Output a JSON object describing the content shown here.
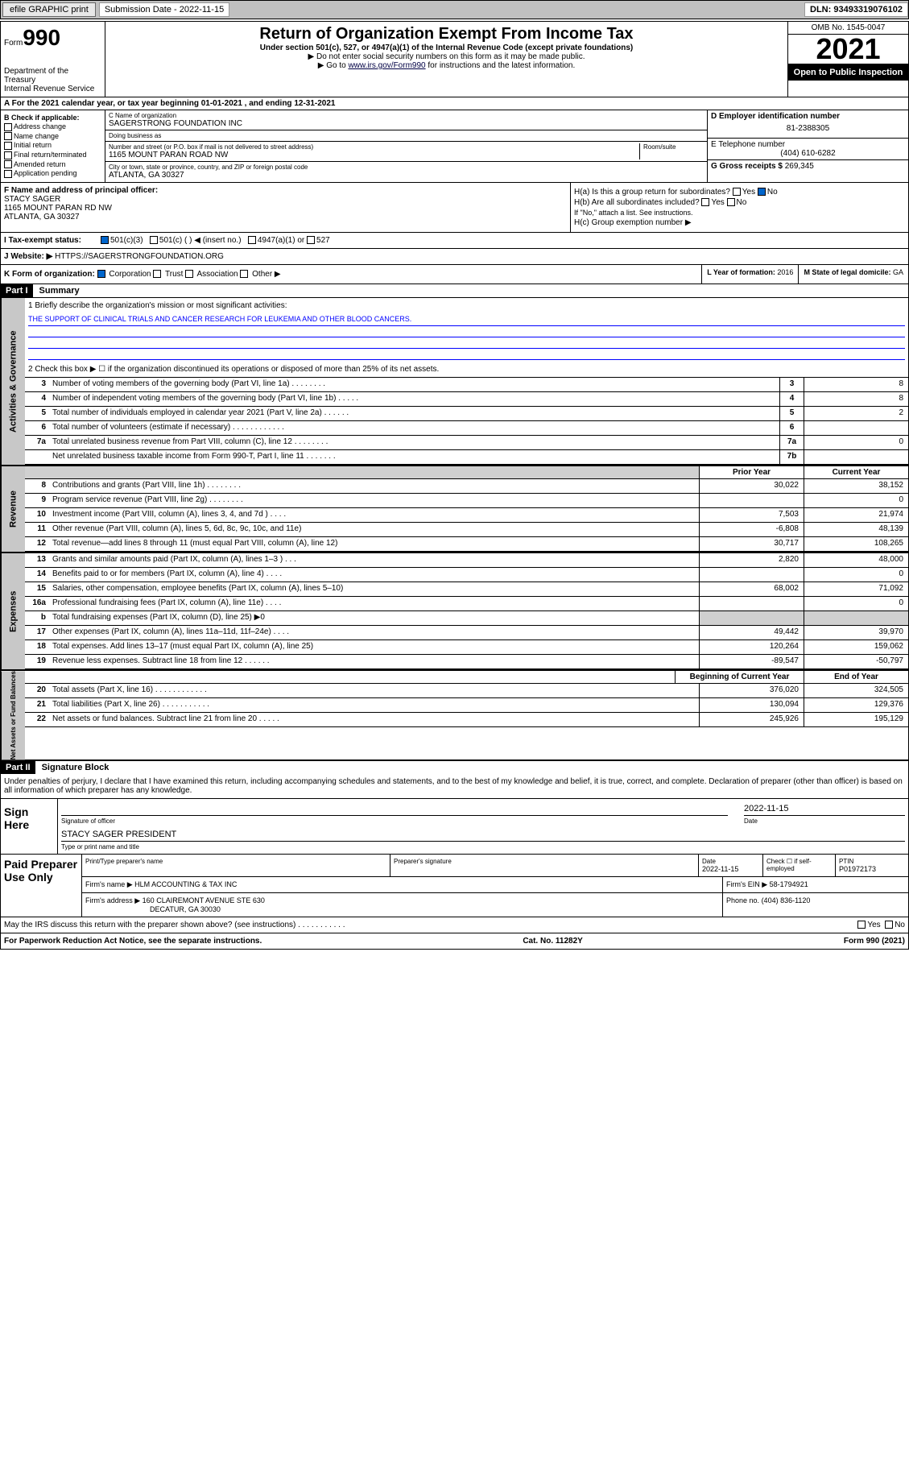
{
  "topbar": {
    "efile": "efile GRAPHIC print",
    "sub_label": "Submission Date - 2022-11-15",
    "dln": "DLN: 93493319076102"
  },
  "header": {
    "form_prefix": "Form",
    "form_number": "990",
    "dept": "Department of the Treasury",
    "irs": "Internal Revenue Service",
    "title": "Return of Organization Exempt From Income Tax",
    "sub": "Under section 501(c), 527, or 4947(a)(1) of the Internal Revenue Code (except private foundations)",
    "note1": "▶ Do not enter social security numbers on this form as it may be made public.",
    "note2_pre": "▶ Go to ",
    "note2_link": "www.irs.gov/Form990",
    "note2_post": " for instructions and the latest information.",
    "omb": "OMB No. 1545-0047",
    "year": "2021",
    "open": "Open to Public Inspection"
  },
  "rowA": {
    "text": "A For the 2021 calendar year, or tax year beginning 01-01-2021   , and ending 12-31-2021"
  },
  "colB": {
    "header": "B Check if applicable:",
    "items": [
      "Address change",
      "Name change",
      "Initial return",
      "Final return/terminated",
      "Amended return",
      "Application pending"
    ]
  },
  "colC": {
    "name_label": "C Name of organization",
    "name": "SAGERSTRONG FOUNDATION INC",
    "dba_label": "Doing business as",
    "dba": "",
    "addr_label": "Number and street (or P.O. box if mail is not delivered to street address)",
    "room_label": "Room/suite",
    "addr": "1165 MOUNT PARAN ROAD NW",
    "city_label": "City or town, state or province, country, and ZIP or foreign postal code",
    "city": "ATLANTA, GA  30327"
  },
  "colD": {
    "d_label": "D Employer identification number",
    "d_val": "81-2388305",
    "e_label": "E Telephone number",
    "e_val": "(404) 610-6282",
    "g_label": "G Gross receipts $",
    "g_val": "269,345"
  },
  "secF": {
    "label": "F Name and address of principal officer:",
    "name": "STACY SAGER",
    "addr": "1165 MOUNT PARAN RD NW",
    "city": "ATLANTA, GA  30327"
  },
  "secH": {
    "ha": "H(a)  Is this a group return for subordinates?",
    "ha_no": "No",
    "hb": "H(b)  Are all subordinates included?",
    "hb_note": "If \"No,\" attach a list. See instructions.",
    "hc": "H(c)  Group exemption number ▶"
  },
  "status": {
    "i": "I   Tax-exempt status:",
    "c3": "501(c)(3)",
    "c": "501(c) (  ) ◀ (insert no.)",
    "a1": "4947(a)(1) or",
    "s527": "527"
  },
  "website": {
    "label": "J   Website: ▶",
    "val": "HTTPS://SAGERSTRONGFOUNDATION.ORG"
  },
  "rowK": {
    "label": "K Form of organization:",
    "corp": "Corporation",
    "trust": "Trust",
    "assoc": "Association",
    "other": "Other ▶",
    "l_label": "L Year of formation:",
    "l_val": "2016",
    "m_label": "M State of legal domicile:",
    "m_val": "GA"
  },
  "part1": {
    "header": "Part I",
    "title": "Summary",
    "line1": "1  Briefly describe the organization's mission or most significant activities:",
    "mission": "THE SUPPORT OF CLINICAL TRIALS AND CANCER RESEARCH FOR LEUKEMIA AND OTHER BLOOD CANCERS.",
    "line2": "2    Check this box ▶ ☐  if the organization discontinued its operations or disposed of more than 25% of its net assets.",
    "sections": {
      "gov": "Activities & Governance",
      "rev": "Revenue",
      "exp": "Expenses",
      "net": "Net Assets or Fund Balances"
    },
    "govlines": [
      {
        "n": "3",
        "d": "Number of voting members of the governing body (Part VI, line 1a)  .   .   .   .   .   .   .   .",
        "b": "3",
        "v": "8"
      },
      {
        "n": "4",
        "d": "Number of independent voting members of the governing body (Part VI, line 1b)  .   .   .   .   .",
        "b": "4",
        "v": "8"
      },
      {
        "n": "5",
        "d": "Total number of individuals employed in calendar year 2021 (Part V, line 2a)  .   .   .   .   .   .",
        "b": "5",
        "v": "2"
      },
      {
        "n": "6",
        "d": "Total number of volunteers (estimate if necessary)  .   .   .   .   .   .   .   .   .   .   .   .",
        "b": "6",
        "v": ""
      },
      {
        "n": "7a",
        "d": "Total unrelated business revenue from Part VIII, column (C), line 12  .   .   .   .   .   .   .   .",
        "b": "7a",
        "v": "0"
      },
      {
        "n": "",
        "d": "Net unrelated business taxable income from Form 990-T, Part I, line 11  .   .   .   .   .   .   .",
        "b": "7b",
        "v": ""
      }
    ],
    "colheads": {
      "prior": "Prior Year",
      "current": "Current Year",
      "begin": "Beginning of Current Year",
      "end": "End of Year"
    },
    "revlines": [
      {
        "n": "8",
        "d": "Contributions and grants (Part VIII, line 1h)  .   .   .   .   .   .   .   .",
        "p": "30,022",
        "c": "38,152"
      },
      {
        "n": "9",
        "d": "Program service revenue (Part VIII, line 2g)  .   .   .   .   .   .   .   .",
        "p": "",
        "c": "0"
      },
      {
        "n": "10",
        "d": "Investment income (Part VIII, column (A), lines 3, 4, and 7d )  .   .   .   .",
        "p": "7,503",
        "c": "21,974"
      },
      {
        "n": "11",
        "d": "Other revenue (Part VIII, column (A), lines 5, 6d, 8c, 9c, 10c, and 11e)",
        "p": "-6,808",
        "c": "48,139"
      },
      {
        "n": "12",
        "d": "Total revenue—add lines 8 through 11 (must equal Part VIII, column (A), line 12)",
        "p": "30,717",
        "c": "108,265"
      }
    ],
    "explines": [
      {
        "n": "13",
        "d": "Grants and similar amounts paid (Part IX, column (A), lines 1–3 )  .   .   .",
        "p": "2,820",
        "c": "48,000"
      },
      {
        "n": "14",
        "d": "Benefits paid to or for members (Part IX, column (A), line 4)  .   .   .   .",
        "p": "",
        "c": "0"
      },
      {
        "n": "15",
        "d": "Salaries, other compensation, employee benefits (Part IX, column (A), lines 5–10)",
        "p": "68,002",
        "c": "71,092"
      },
      {
        "n": "16a",
        "d": "Professional fundraising fees (Part IX, column (A), line 11e)  .   .   .   .",
        "p": "",
        "c": "0"
      },
      {
        "n": "b",
        "d": "Total fundraising expenses (Part IX, column (D), line 25) ▶0",
        "p": "SHADED",
        "c": "SHADED"
      },
      {
        "n": "17",
        "d": "Other expenses (Part IX, column (A), lines 11a–11d, 11f–24e)  .   .   .   .",
        "p": "49,442",
        "c": "39,970"
      },
      {
        "n": "18",
        "d": "Total expenses. Add lines 13–17 (must equal Part IX, column (A), line 25)",
        "p": "120,264",
        "c": "159,062"
      },
      {
        "n": "19",
        "d": "Revenue less expenses. Subtract line 18 from line 12  .   .   .   .   .   .",
        "p": "-89,547",
        "c": "-50,797"
      }
    ],
    "netlines": [
      {
        "n": "20",
        "d": "Total assets (Part X, line 16)  .   .   .   .   .   .   .   .   .   .   .   .",
        "p": "376,020",
        "c": "324,505"
      },
      {
        "n": "21",
        "d": "Total liabilities (Part X, line 26)  .   .   .   .   .   .   .   .   .   .   .",
        "p": "130,094",
        "c": "129,376"
      },
      {
        "n": "22",
        "d": "Net assets or fund balances. Subtract line 21 from line 20  .   .   .   .   .",
        "p": "245,926",
        "c": "195,129"
      }
    ]
  },
  "part2": {
    "header": "Part II",
    "title": "Signature Block",
    "perjury": "Under penalties of perjury, I declare that I have examined this return, including accompanying schedules and statements, and to the best of my knowledge and belief, it is true, correct, and complete. Declaration of preparer (other than officer) is based on all information of which preparer has any knowledge.",
    "sign_here": "Sign Here",
    "sig_officer": "Signature of officer",
    "sig_date_label": "Date",
    "sig_date": "2022-11-15",
    "sig_name": "STACY SAGER PRESIDENT",
    "sig_name_label": "Type or print name and title",
    "paid": "Paid Preparer Use Only",
    "prep_name_label": "Print/Type preparer's name",
    "prep_sig_label": "Preparer's signature",
    "prep_date_label": "Date",
    "prep_date": "2022-11-15",
    "prep_check": "Check ☐ if self-employed",
    "ptin_label": "PTIN",
    "ptin": "P01972173",
    "firm_name_label": "Firm's name    ▶",
    "firm_name": "HLM ACCOUNTING & TAX INC",
    "firm_ein_label": "Firm's EIN ▶",
    "firm_ein": "58-1794921",
    "firm_addr_label": "Firm's address ▶",
    "firm_addr": "160 CLAIREMONT AVENUE STE 630",
    "firm_city": "DECATUR, GA 30030",
    "firm_phone_label": "Phone no.",
    "firm_phone": "(404) 836-1120",
    "may_irs": "May the IRS discuss this return with the preparer shown above? (see instructions)  .   .   .   .   .   .   .   .   .   .   .",
    "yes": "Yes",
    "no": "No"
  },
  "footer": {
    "paperwork": "For Paperwork Reduction Act Notice, see the separate instructions.",
    "cat": "Cat. No. 11282Y",
    "form": "Form 990 (2021)"
  }
}
